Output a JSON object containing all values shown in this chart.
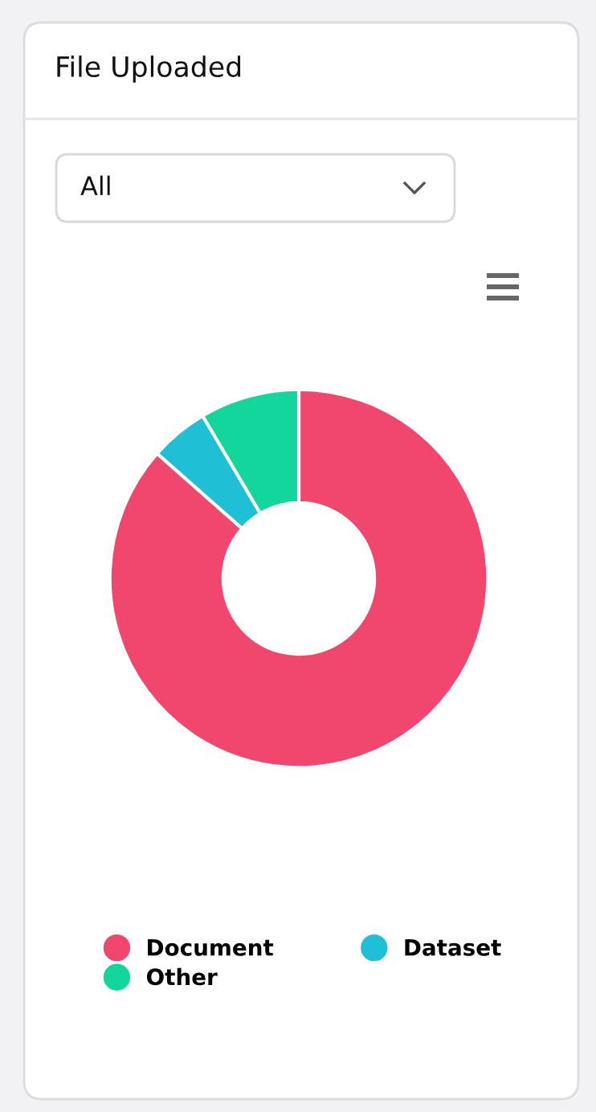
{
  "chart_data": {
    "type": "donut",
    "title": "File Uploaded",
    "annotations": [
      "All"
    ],
    "categories": [
      "Document",
      "Dataset",
      "Other"
    ],
    "values": [
      86.5,
      5,
      8.5
    ],
    "colors": [
      "#f1466e",
      "#1fbfd6",
      "#12d69c"
    ],
    "legend": "bottom"
  }
}
